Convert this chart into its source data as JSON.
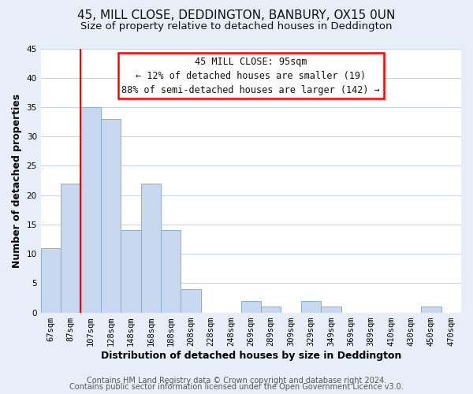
{
  "title": "45, MILL CLOSE, DEDDINGTON, BANBURY, OX15 0UN",
  "subtitle": "Size of property relative to detached houses in Deddington",
  "xlabel": "Distribution of detached houses by size in Deddington",
  "ylabel": "Number of detached properties",
  "footer_line1": "Contains HM Land Registry data © Crown copyright and database right 2024.",
  "footer_line2": "Contains public sector information licensed under the Open Government Licence v3.0.",
  "bar_labels": [
    "67sqm",
    "87sqm",
    "107sqm",
    "128sqm",
    "148sqm",
    "168sqm",
    "188sqm",
    "208sqm",
    "228sqm",
    "248sqm",
    "269sqm",
    "289sqm",
    "309sqm",
    "329sqm",
    "349sqm",
    "369sqm",
    "389sqm",
    "410sqm",
    "430sqm",
    "450sqm",
    "470sqm"
  ],
  "bar_values": [
    11,
    22,
    35,
    33,
    14,
    22,
    14,
    4,
    0,
    0,
    2,
    1,
    0,
    2,
    1,
    0,
    0,
    0,
    0,
    1,
    0
  ],
  "bar_color": "#c8d8ee",
  "bar_edge_color": "#8badd4",
  "ylim": [
    0,
    45
  ],
  "yticks": [
    0,
    5,
    10,
    15,
    20,
    25,
    30,
    35,
    40,
    45
  ],
  "red_line_index": 1,
  "annotation_title": "45 MILL CLOSE: 95sqm",
  "annotation_line1": "← 12% of detached houses are smaller (19)",
  "annotation_line2": "88% of semi-detached houses are larger (142) →",
  "background_color": "#e8eef8",
  "plot_bg_color": "#ffffff",
  "grid_color": "#c8d4e8",
  "title_fontsize": 11,
  "subtitle_fontsize": 9.5,
  "label_fontsize": 9,
  "tick_fontsize": 7.5,
  "footer_fontsize": 7,
  "ann_fontsize": 8.5
}
